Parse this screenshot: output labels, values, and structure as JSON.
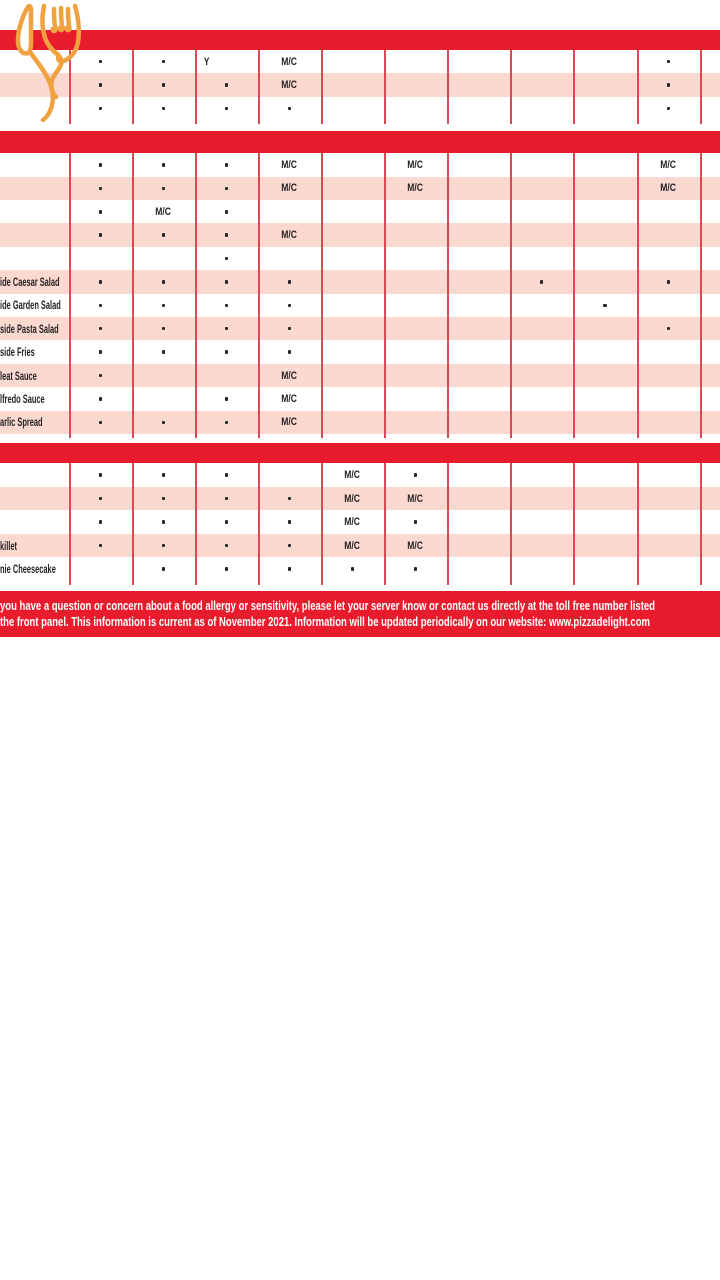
{
  "colors": {
    "brand_red": "#e81c2c",
    "row_pink": "#fbd9d0",
    "grid_line_red": "#d94a54",
    "marker_black": "#2b2627",
    "logo_orange": "#f0a240",
    "footer_text": "#ffffff"
  },
  "logo": {
    "icon": "crossed-fork-and-knife",
    "color": "#f0a240"
  },
  "table": {
    "num_allergen_columns": 10,
    "groups": [
      {
        "section_bar_label": "",
        "rows": [
          {
            "label": "",
            "cells": [
              {
                "c": 1,
                "t": "•"
              },
              {
                "c": 2,
                "t": "•"
              },
              {
                "c": 3,
                "t": "Y",
                "align": "left"
              },
              {
                "c": 4,
                "t": "M/C"
              },
              {
                "c": 10,
                "t": "•"
              }
            ]
          },
          {
            "label": "",
            "cells": [
              {
                "c": 1,
                "t": "•"
              },
              {
                "c": 2,
                "t": "•"
              },
              {
                "c": 3,
                "t": "•"
              },
              {
                "c": 4,
                "t": "M/C"
              },
              {
                "c": 10,
                "t": "•"
              }
            ]
          },
          {
            "label": "",
            "cells": [
              {
                "c": 1,
                "t": "•"
              },
              {
                "c": 2,
                "t": "•"
              },
              {
                "c": 3,
                "t": "•"
              },
              {
                "c": 4,
                "t": "•"
              },
              {
                "c": 10,
                "t": "•"
              }
            ]
          }
        ]
      },
      {
        "section_bar_label": "",
        "rows": [
          {
            "label": "",
            "cells": [
              {
                "c": 1,
                "t": "•"
              },
              {
                "c": 2,
                "t": "•"
              },
              {
                "c": 3,
                "t": "•"
              },
              {
                "c": 4,
                "t": "M/C"
              },
              {
                "c": 6,
                "t": "M/C"
              },
              {
                "c": 10,
                "t": "M/C"
              }
            ]
          },
          {
            "label": "",
            "cells": [
              {
                "c": 1,
                "t": "•"
              },
              {
                "c": 2,
                "t": "•"
              },
              {
                "c": 3,
                "t": "•"
              },
              {
                "c": 4,
                "t": "M/C"
              },
              {
                "c": 6,
                "t": "M/C"
              },
              {
                "c": 10,
                "t": "M/C"
              }
            ]
          },
          {
            "label": "",
            "cells": [
              {
                "c": 1,
                "t": "•"
              },
              {
                "c": 2,
                "t": "M/C"
              },
              {
                "c": 3,
                "t": "•"
              }
            ]
          },
          {
            "label": "",
            "cells": [
              {
                "c": 1,
                "t": "•"
              },
              {
                "c": 2,
                "t": "•"
              },
              {
                "c": 3,
                "t": "•"
              },
              {
                "c": 4,
                "t": "M/C"
              }
            ]
          },
          {
            "label": "",
            "cells": [
              {
                "c": 3,
                "t": "•"
              }
            ]
          },
          {
            "label": "ide Caesar Salad",
            "cells": [
              {
                "c": 1,
                "t": "•"
              },
              {
                "c": 2,
                "t": "•"
              },
              {
                "c": 3,
                "t": "•"
              },
              {
                "c": 4,
                "t": "•"
              },
              {
                "c": 8,
                "t": "•"
              },
              {
                "c": 10,
                "t": "•"
              }
            ]
          },
          {
            "label": "ide Garden Salad",
            "cells": [
              {
                "c": 1,
                "t": "•"
              },
              {
                "c": 2,
                "t": "•"
              },
              {
                "c": 3,
                "t": "•"
              },
              {
                "c": 4,
                "t": "•"
              },
              {
                "c": 9,
                "t": "•"
              }
            ]
          },
          {
            "label": "side Pasta Salad",
            "cells": [
              {
                "c": 1,
                "t": "•"
              },
              {
                "c": 2,
                "t": "•"
              },
              {
                "c": 3,
                "t": "•"
              },
              {
                "c": 4,
                "t": "•"
              },
              {
                "c": 10,
                "t": "•"
              }
            ]
          },
          {
            "label": "side Fries",
            "cells": [
              {
                "c": 1,
                "t": "•"
              },
              {
                "c": 2,
                "t": "•"
              },
              {
                "c": 3,
                "t": "•"
              },
              {
                "c": 4,
                "t": "•"
              }
            ]
          },
          {
            "label": "leat Sauce",
            "cells": [
              {
                "c": 1,
                "t": "•"
              },
              {
                "c": 4,
                "t": "M/C"
              }
            ]
          },
          {
            "label": "lfredo Sauce",
            "cells": [
              {
                "c": 1,
                "t": "•"
              },
              {
                "c": 3,
                "t": "•"
              },
              {
                "c": 4,
                "t": "M/C"
              }
            ]
          },
          {
            "label": "arlic Spread",
            "cells": [
              {
                "c": 1,
                "t": "•"
              },
              {
                "c": 2,
                "t": "•"
              },
              {
                "c": 3,
                "t": "•"
              },
              {
                "c": 4,
                "t": "M/C"
              }
            ]
          }
        ]
      },
      {
        "section_bar_label": "",
        "rows": [
          {
            "label": "",
            "cells": [
              {
                "c": 1,
                "t": "•"
              },
              {
                "c": 2,
                "t": "•"
              },
              {
                "c": 3,
                "t": "•"
              },
              {
                "c": 5,
                "t": "M/C"
              },
              {
                "c": 6,
                "t": "•"
              }
            ]
          },
          {
            "label": "",
            "cells": [
              {
                "c": 1,
                "t": "•"
              },
              {
                "c": 2,
                "t": "•"
              },
              {
                "c": 3,
                "t": "•"
              },
              {
                "c": 4,
                "t": "•"
              },
              {
                "c": 5,
                "t": "M/C"
              },
              {
                "c": 6,
                "t": "M/C"
              }
            ]
          },
          {
            "label": "",
            "cells": [
              {
                "c": 1,
                "t": "•"
              },
              {
                "c": 2,
                "t": "•"
              },
              {
                "c": 3,
                "t": "•"
              },
              {
                "c": 4,
                "t": "•"
              },
              {
                "c": 5,
                "t": "M/C"
              },
              {
                "c": 6,
                "t": "•"
              }
            ]
          },
          {
            "label": "killet",
            "cells": [
              {
                "c": 1,
                "t": "•"
              },
              {
                "c": 2,
                "t": "•"
              },
              {
                "c": 3,
                "t": "•"
              },
              {
                "c": 4,
                "t": "•"
              },
              {
                "c": 5,
                "t": "M/C"
              },
              {
                "c": 6,
                "t": "M/C"
              }
            ]
          },
          {
            "label": "nie Cheesecake",
            "cells": [
              {
                "c": 2,
                "t": "•"
              },
              {
                "c": 3,
                "t": "•"
              },
              {
                "c": 4,
                "t": "•"
              },
              {
                "c": 5,
                "t": "•"
              },
              {
                "c": 6,
                "t": "•"
              }
            ]
          }
        ]
      }
    ]
  },
  "footer": {
    "line1": "you have a question or concern about a food allergy or sensitivity, please let your server know or contact us directly at the toll free number listed",
    "line2": "the front panel. This information is current as of November 2021. Information will be updated periodically on our website: www.pizzadelight.com"
  }
}
